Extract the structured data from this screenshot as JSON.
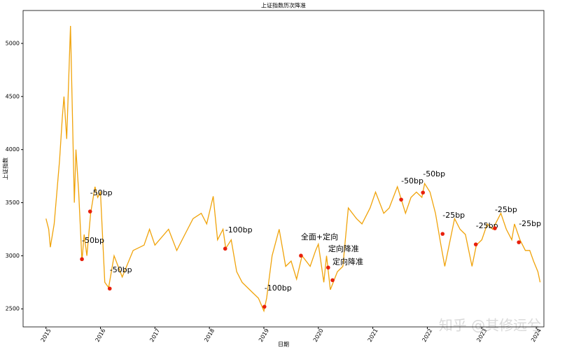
{
  "chart_data": {
    "type": "line",
    "title": "上证指数历次降准",
    "x_label": "日期",
    "y_label": "上证指数",
    "color": "#f0a30a",
    "x": [
      2015.0,
      2015.05,
      2015.08,
      2015.15,
      2015.25,
      2015.3,
      2015.33,
      2015.38,
      2015.45,
      2015.52,
      2015.55,
      2015.6,
      2015.66,
      2015.7,
      2015.75,
      2015.82,
      2015.9,
      2015.95,
      2016.0,
      2016.08,
      2016.15,
      2016.25,
      2016.4,
      2016.6,
      2016.8,
      2016.9,
      2017.0,
      2017.25,
      2017.4,
      2017.55,
      2017.7,
      2017.85,
      2017.95,
      2018.07,
      2018.15,
      2018.25,
      2018.3,
      2018.4,
      2018.5,
      2018.6,
      2018.8,
      2018.9,
      2019.0,
      2019.05,
      2019.15,
      2019.28,
      2019.4,
      2019.5,
      2019.6,
      2019.7,
      2019.85,
      2019.95,
      2020.0,
      2020.1,
      2020.15,
      2020.22,
      2020.35,
      2020.45,
      2020.55,
      2020.7,
      2020.8,
      2020.95,
      2021.05,
      2021.2,
      2021.3,
      2021.45,
      2021.6,
      2021.7,
      2021.8,
      2021.9,
      2021.95,
      2022.05,
      2022.15,
      2022.25,
      2022.32,
      2022.4,
      2022.5,
      2022.6,
      2022.7,
      2022.82,
      2022.9,
      2023.0,
      2023.1,
      2023.2,
      2023.35,
      2023.45,
      2023.55,
      2023.6,
      2023.7,
      2023.8,
      2023.88,
      2023.95,
      2024.03,
      2024.07
    ],
    "values": [
      3350,
      3250,
      3080,
      3300,
      3900,
      4300,
      4500,
      4100,
      5165,
      3500,
      4000,
      3600,
      2950,
      3200,
      3000,
      3400,
      3650,
      3550,
      3600,
      2750,
      2700,
      3000,
      2800,
      3050,
      3100,
      3250,
      3100,
      3250,
      3050,
      3200,
      3350,
      3400,
      3300,
      3560,
      3150,
      3250,
      3070,
      3150,
      2850,
      2750,
      2650,
      2600,
      2480,
      2600,
      3000,
      3250,
      2900,
      2950,
      2780,
      3000,
      2900,
      3050,
      3110,
      2750,
      3000,
      2680,
      2850,
      2900,
      3450,
      3350,
      3300,
      3450,
      3600,
      3400,
      3450,
      3650,
      3400,
      3550,
      3600,
      3550,
      3680,
      3600,
      3400,
      3100,
      2900,
      3100,
      3350,
      3250,
      3200,
      2900,
      3100,
      3150,
      3300,
      3250,
      3400,
      3250,
      3150,
      3300,
      3150,
      3050,
      3050,
      2950,
      2850,
      2750
    ],
    "events": {
      "color": "#e8200c",
      "x": [
        2015.66,
        2015.81,
        2016.17,
        2018.29,
        2019.01,
        2019.68,
        2020.18,
        2020.26,
        2021.52,
        2021.92,
        2022.28,
        2022.89,
        2023.24,
        2023.68
      ],
      "y": [
        2968,
        3417,
        2691,
        3067,
        2520,
        3001,
        2889,
        2770,
        3529,
        3595,
        3206,
        3107,
        3259,
        3127
      ],
      "labels": [
        "-50bp",
        "-50bp",
        "-50bp",
        "-100bp",
        "-100bp",
        "全面+定向",
        "定向降准",
        "定向降准",
        "-50bp",
        "-50bp",
        "-25bp",
        "-25bp",
        "-25bp",
        "-25bp"
      ]
    },
    "xlim": [
      2014.58,
      2024.14
    ],
    "xticks": [
      2015,
      2016,
      2017,
      2018,
      2019,
      2020,
      2021,
      2022,
      2023,
      2024
    ],
    "ylim": [
      2330,
      5310
    ],
    "yticks": [
      2500,
      3000,
      3500,
      4000,
      4500,
      5000
    ],
    "watermark": "知乎 @其修远兮"
  }
}
